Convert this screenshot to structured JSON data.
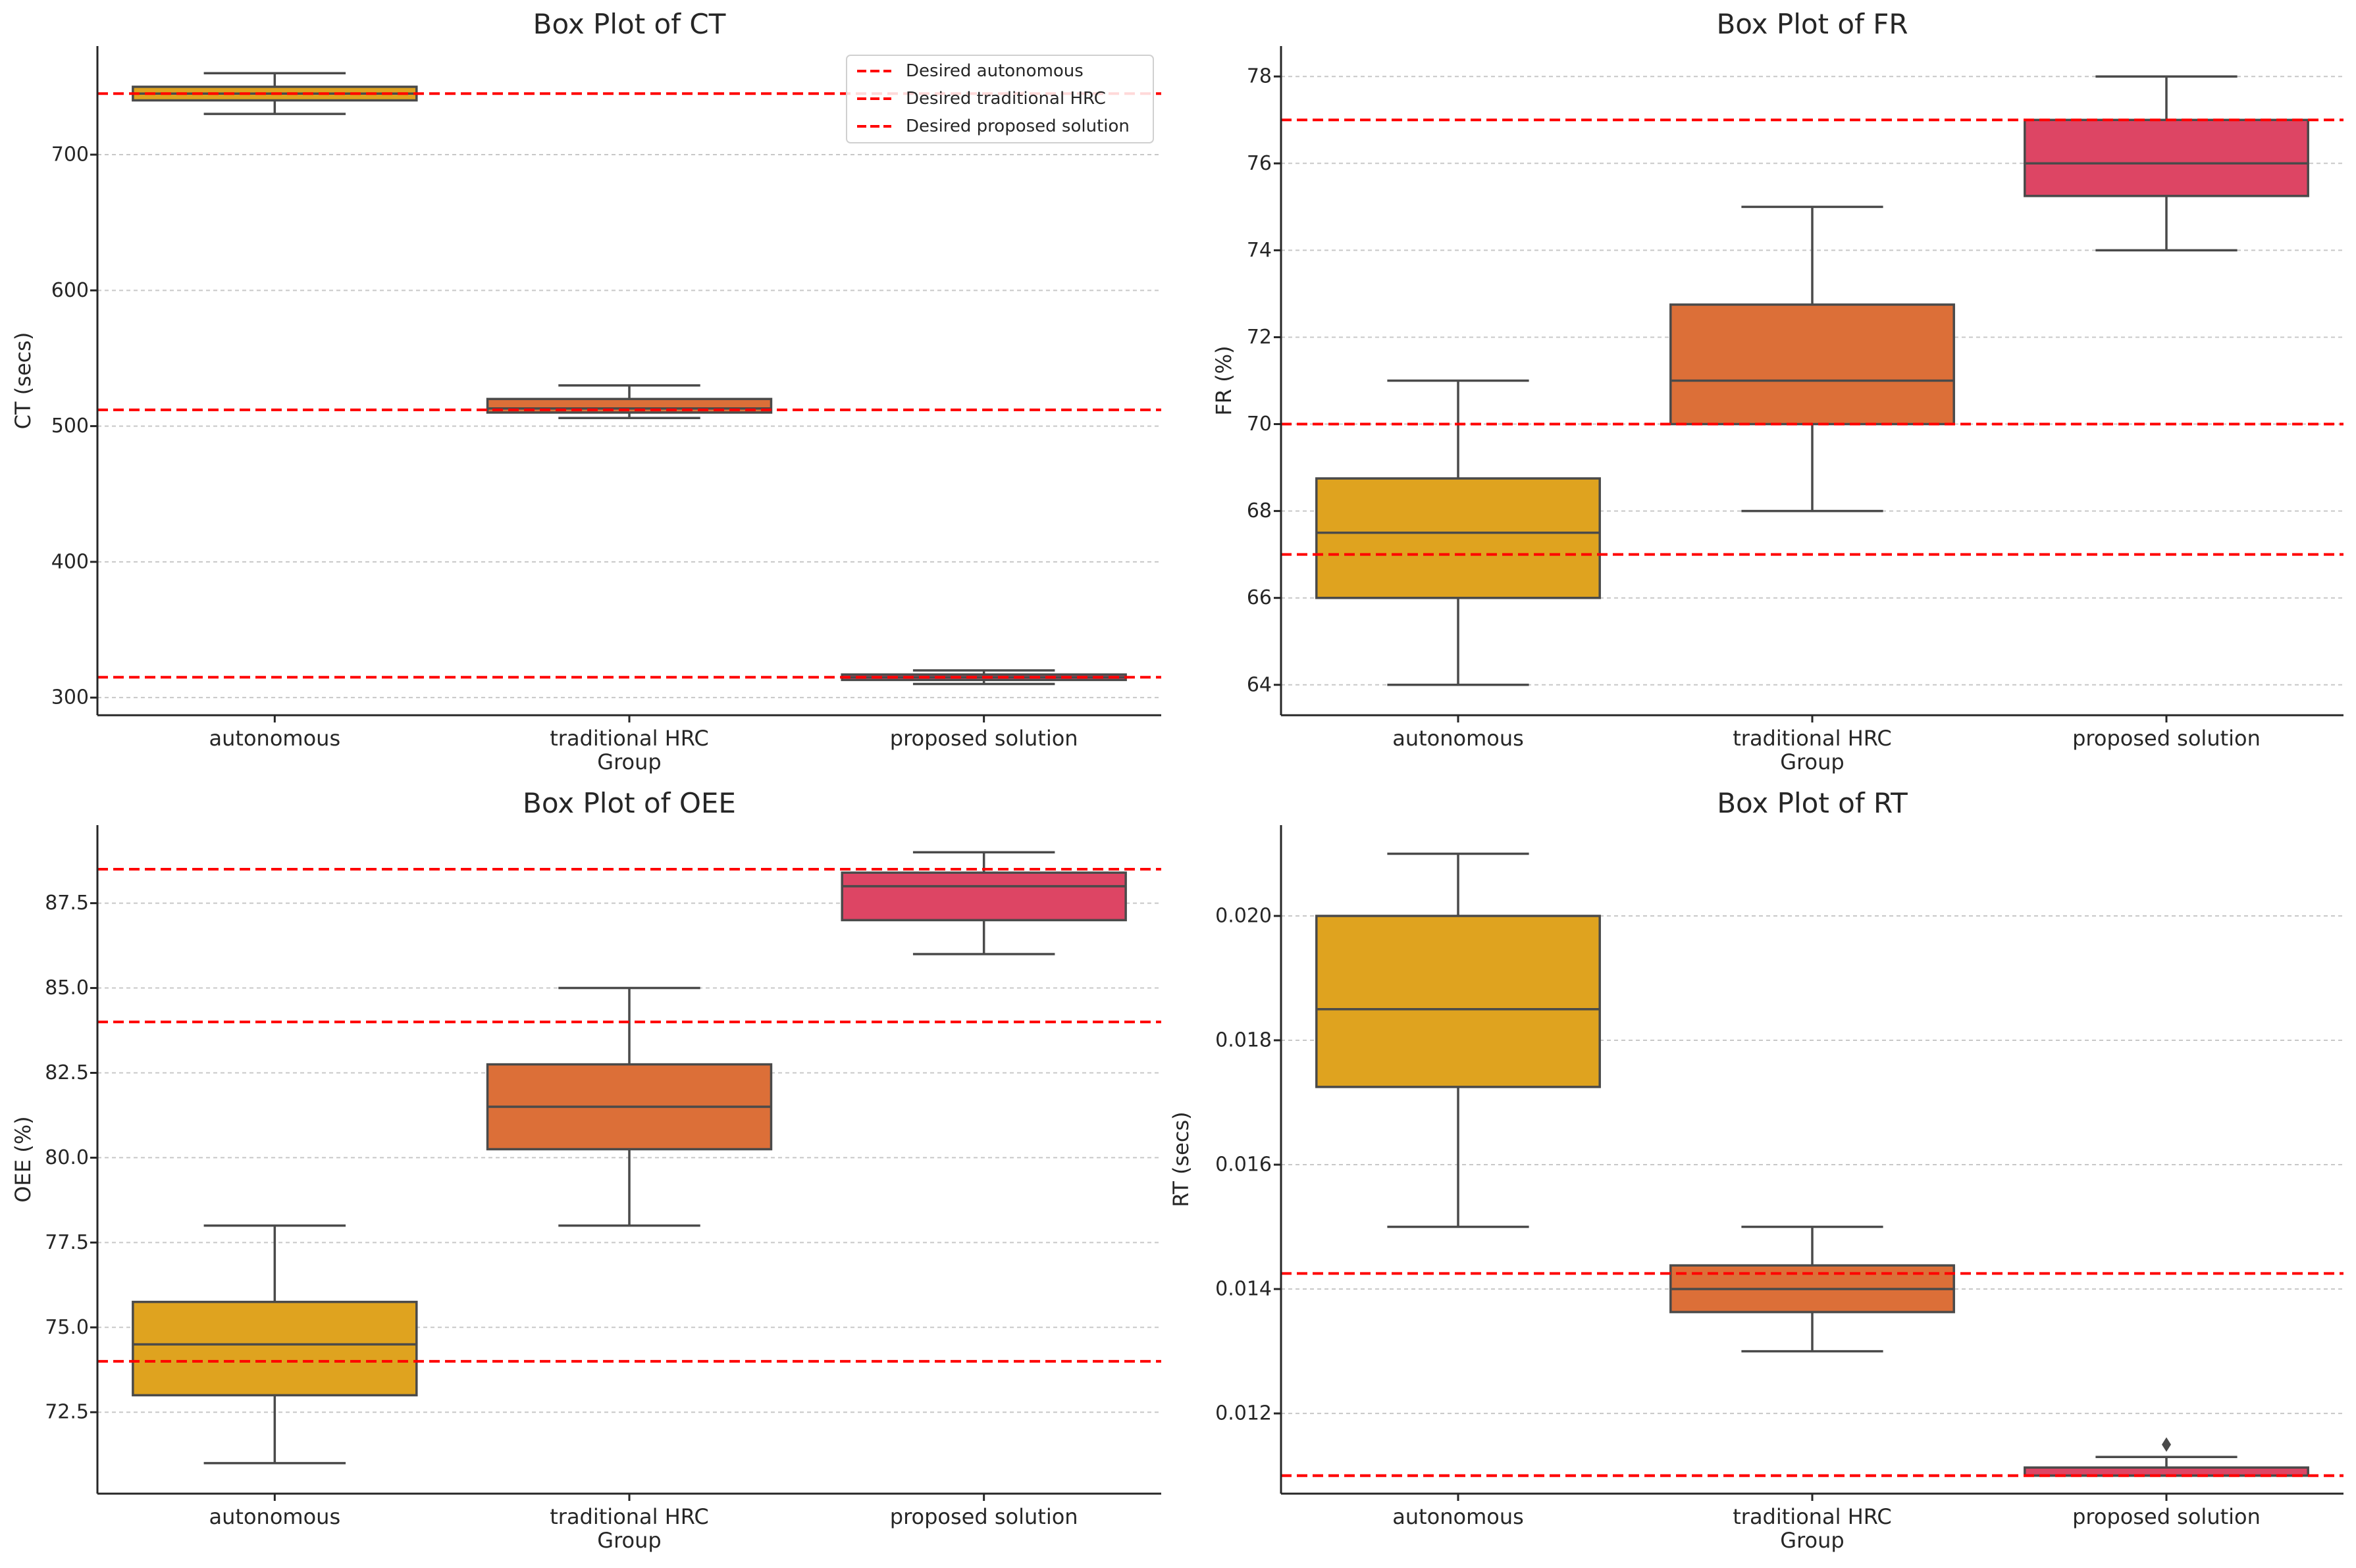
{
  "colors": {
    "autonomous": "#dfa31f",
    "traditional_hrc": "#dc6f38",
    "proposed_solution": "#dd4564",
    "box_edge": "#4a4a4a",
    "reference_line": "#ff0000",
    "grid": "#c8c8c8",
    "axis": "#262626"
  },
  "chart_data": [
    {
      "type": "box",
      "title": "Box Plot of CT",
      "xlabel": "Group",
      "ylabel": "CT (secs)",
      "categories": [
        "autonomous",
        "traditional HRC",
        "proposed solution"
      ],
      "ylim": [
        287,
        780
      ],
      "yticks": [
        300,
        400,
        500,
        600,
        700
      ],
      "ytick_labels": [
        "300",
        "400",
        "500",
        "600",
        "700"
      ],
      "grid": true,
      "boxes": [
        {
          "group": "autonomous",
          "whisker_low": 730,
          "q1": 740,
          "median": 745,
          "q3": 750,
          "whisker_high": 760,
          "outliers": []
        },
        {
          "group": "traditional HRC",
          "whisker_low": 506,
          "q1": 510,
          "median": 513,
          "q3": 520,
          "whisker_high": 530,
          "outliers": []
        },
        {
          "group": "proposed solution",
          "whisker_low": 310,
          "q1": 313,
          "median": 315,
          "q3": 317,
          "whisker_high": 320,
          "outliers": []
        }
      ],
      "reference_lines": [
        {
          "label": "Desired autonomous",
          "value": 745
        },
        {
          "label": "Desired traditional HRC",
          "value": 512
        },
        {
          "label": "Desired proposed solution",
          "value": 315
        }
      ],
      "legend": {
        "position": "top-right",
        "entries": [
          "Desired autonomous",
          "Desired traditional HRC",
          "Desired proposed solution"
        ]
      }
    },
    {
      "type": "box",
      "title": "Box Plot of FR",
      "xlabel": "Group",
      "ylabel": "FR (%)",
      "categories": [
        "autonomous",
        "traditional HRC",
        "proposed solution"
      ],
      "ylim": [
        63.3,
        78.7
      ],
      "yticks": [
        64,
        66,
        68,
        70,
        72,
        74,
        76,
        78
      ],
      "ytick_labels": [
        "64",
        "66",
        "68",
        "70",
        "72",
        "74",
        "76",
        "78"
      ],
      "grid": true,
      "boxes": [
        {
          "group": "autonomous",
          "whisker_low": 64,
          "q1": 66,
          "median": 67.5,
          "q3": 68.75,
          "whisker_high": 71,
          "outliers": []
        },
        {
          "group": "traditional HRC",
          "whisker_low": 68,
          "q1": 70,
          "median": 71,
          "q3": 72.75,
          "whisker_high": 75,
          "outliers": []
        },
        {
          "group": "proposed solution",
          "whisker_low": 74,
          "q1": 75.25,
          "median": 76,
          "q3": 77,
          "whisker_high": 78,
          "outliers": []
        }
      ],
      "reference_lines": [
        {
          "label": "Desired autonomous",
          "value": 67
        },
        {
          "label": "Desired traditional HRC",
          "value": 70
        },
        {
          "label": "Desired proposed solution",
          "value": 77
        }
      ]
    },
    {
      "type": "box",
      "title": "Box Plot of OEE",
      "xlabel": "Group",
      "ylabel": "OEE (%)",
      "categories": [
        "autonomous",
        "traditional HRC",
        "proposed solution"
      ],
      "ylim": [
        70.1,
        89.8
      ],
      "yticks": [
        72.5,
        75.0,
        77.5,
        80.0,
        82.5,
        85.0,
        87.5
      ],
      "ytick_labels": [
        "72.5",
        "75.0",
        "77.5",
        "80.0",
        "82.5",
        "85.0",
        "87.5"
      ],
      "grid": true,
      "boxes": [
        {
          "group": "autonomous",
          "whisker_low": 71,
          "q1": 73,
          "median": 74.5,
          "q3": 75.75,
          "whisker_high": 78,
          "outliers": []
        },
        {
          "group": "traditional HRC",
          "whisker_low": 78,
          "q1": 80.25,
          "median": 81.5,
          "q3": 82.75,
          "whisker_high": 85,
          "outliers": []
        },
        {
          "group": "proposed solution",
          "whisker_low": 86,
          "q1": 87,
          "median": 88,
          "q3": 88.4,
          "whisker_high": 89,
          "outliers": []
        }
      ],
      "reference_lines": [
        {
          "label": "Desired autonomous",
          "value": 74
        },
        {
          "label": "Desired traditional HRC",
          "value": 84
        },
        {
          "label": "Desired proposed solution",
          "value": 88.5
        }
      ]
    },
    {
      "type": "box",
      "title": "Box Plot of RT",
      "xlabel": "Group",
      "ylabel": "RT (secs)",
      "categories": [
        "autonomous",
        "traditional HRC",
        "proposed solution"
      ],
      "ylim": [
        0.01071,
        0.02146
      ],
      "yticks": [
        0.012,
        0.014,
        0.016,
        0.018,
        0.02
      ],
      "ytick_labels": [
        "0.012",
        "0.014",
        "0.016",
        "0.018",
        "0.020"
      ],
      "grid": true,
      "boxes": [
        {
          "group": "autonomous",
          "whisker_low": 0.015,
          "q1": 0.01725,
          "median": 0.0185,
          "q3": 0.02,
          "whisker_high": 0.021,
          "outliers": []
        },
        {
          "group": "traditional HRC",
          "whisker_low": 0.013,
          "q1": 0.01363,
          "median": 0.014,
          "q3": 0.01438,
          "whisker_high": 0.015,
          "outliers": []
        },
        {
          "group": "proposed solution",
          "whisker_low": 0.011,
          "q1": 0.011,
          "median": 0.011,
          "q3": 0.01113,
          "whisker_high": 0.0113,
          "outliers": [
            0.0115
          ]
        }
      ],
      "reference_lines": [
        {
          "label": "Desired autonomous",
          "value": 0.01425
        },
        {
          "label": "Desired traditional HRC",
          "value": 0.011
        },
        {
          "label": "Desired proposed solution",
          "value": 0.011
        }
      ]
    }
  ]
}
